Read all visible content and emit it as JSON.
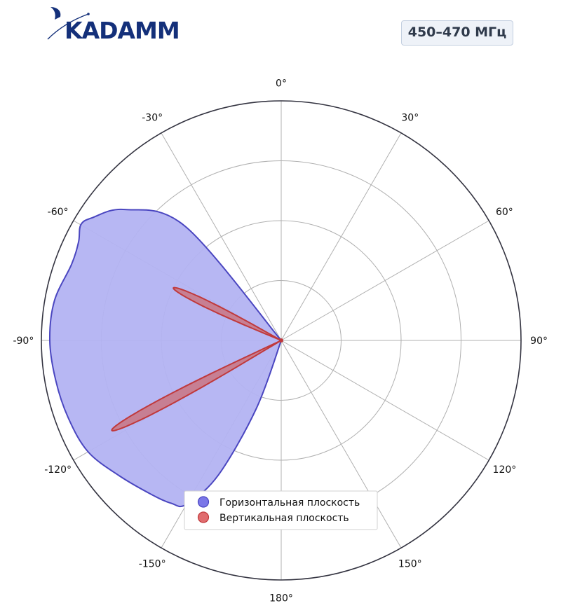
{
  "logo": {
    "text": "KADAMM"
  },
  "badge": {
    "label": "450–470 МГц"
  },
  "colors": {
    "horizontal_fill": "#b3b3f2",
    "horizontal_line": "#4a46c0",
    "vertical_fill": "#c97885",
    "vertical_line": "#c0393c",
    "grid": "#b0b0b0",
    "frame": "#333340"
  },
  "chart_data": {
    "type": "polar",
    "title": "",
    "theta_direction": "clockwise",
    "theta_zero": "top",
    "theta_ticks": [
      "0°",
      "30°",
      "60°",
      "90°",
      "120°",
      "150°",
      "180°",
      "-150°",
      "-120°",
      "-90°",
      "-60°",
      "-30°"
    ],
    "theta_tick_angles": [
      0,
      30,
      60,
      90,
      120,
      150,
      180,
      -150,
      -120,
      -90,
      -60,
      -30
    ],
    "r_rings": [
      0.25,
      0.5,
      0.75
    ],
    "r_max": 1.0,
    "grid": true,
    "legend_position": "bottom-center",
    "series": [
      {
        "name": "Горизонтальная плоскость",
        "angles": [
          -30,
          -40,
          -50,
          -57,
          -60,
          -64,
          -70,
          -80,
          -90,
          -100,
          -110,
          -120,
          -130,
          -140,
          -146,
          -150,
          -155,
          -160,
          -180
        ],
        "values": [
          0,
          0.62,
          0.85,
          0.94,
          0.965,
          0.94,
          0.93,
          0.96,
          0.965,
          0.955,
          0.945,
          0.93,
          0.88,
          0.84,
          0.82,
          0.79,
          0.62,
          0.3,
          0
        ],
        "fill": true
      },
      {
        "name": "Вертикальная плоскость",
        "lobes": [
          {
            "center_angle": -64,
            "peak": 0.5,
            "half_width": 3.5
          },
          {
            "center_angle": -118,
            "peak": 0.8,
            "half_width": 3.0
          }
        ],
        "fill": true
      }
    ]
  }
}
